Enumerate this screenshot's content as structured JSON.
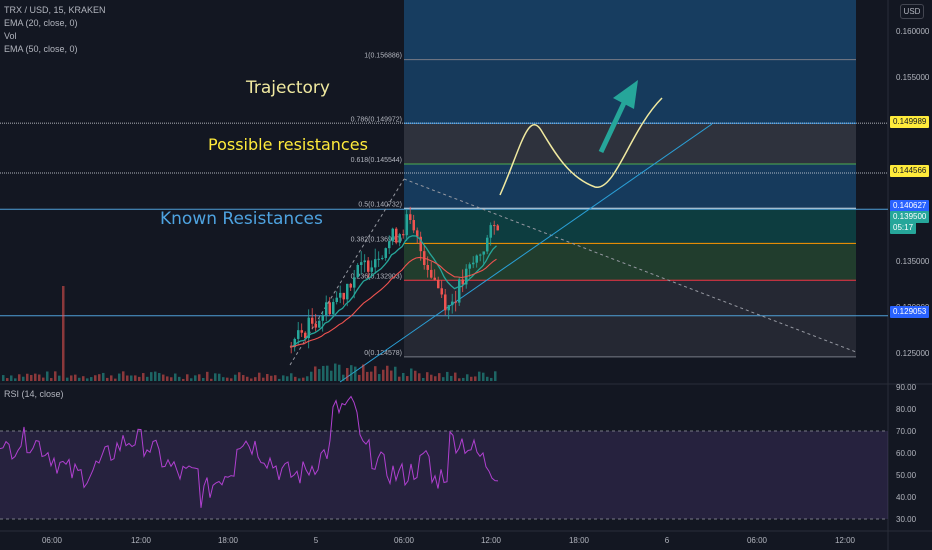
{
  "symbol": {
    "title": "TRX / USD, 15, KRAKEN"
  },
  "indicators": [
    "EMA (20, close, 0)",
    "Vol",
    "EMA (50, close, 0)"
  ],
  "rsi": {
    "label": "RSI (14, close)",
    "upper": 70,
    "lower": 30
  },
  "currency": "USD",
  "annotations": {
    "trajectory": "Trajectory",
    "possible": "Possible resistances",
    "known": "Known Resistances"
  },
  "fib_labels": [
    "1(0.156886)",
    "0.786(0.149972)",
    "0.618(0.145544)",
    "0.5(0.140732)",
    "0.382(0.136920)",
    "0.236(0.132903)",
    "0(0.124578)"
  ],
  "fib_values": [
    0.156886,
    0.149972,
    0.145544,
    0.140732,
    0.13692,
    0.132903,
    0.124578
  ],
  "price_axis": [
    "0.160000",
    "0.155000",
    "0.150000",
    "0.145000",
    "0.140000",
    "0.135000",
    "0.130000",
    "0.125000"
  ],
  "price_tags": [
    {
      "text": "0.149989",
      "bg": "#ffeb3b",
      "fg": "#131722"
    },
    {
      "text": "0.144566",
      "bg": "#ffeb3b",
      "fg": "#131722"
    },
    {
      "text": "0.140627",
      "bg": "#2962ff",
      "fg": "#ffffff"
    },
    {
      "text": "0.139500",
      "bg": "#26a69a",
      "fg": "#ffffff"
    },
    {
      "text": "05:17",
      "bg": "#26a69a",
      "fg": "#ffffff"
    },
    {
      "text": "0.129053",
      "bg": "#2962ff",
      "fg": "#ffffff"
    }
  ],
  "rsi_axis": [
    "90.00",
    "80.00",
    "70.00",
    "60.00",
    "50.00",
    "40.00",
    "30.00"
  ],
  "time_axis": [
    "06:00",
    "12:00",
    "18:00",
    "5",
    "06:00",
    "12:00",
    "18:00",
    "6",
    "06:00",
    "12:00"
  ],
  "colors": {
    "up": "#26a69a",
    "down": "#ef5350",
    "accent": "#2962ff",
    "hline": "#4e9fd8",
    "rsi": "#b040d0",
    "ema20": "#26a69a",
    "ema50": "#ef5350"
  }
}
